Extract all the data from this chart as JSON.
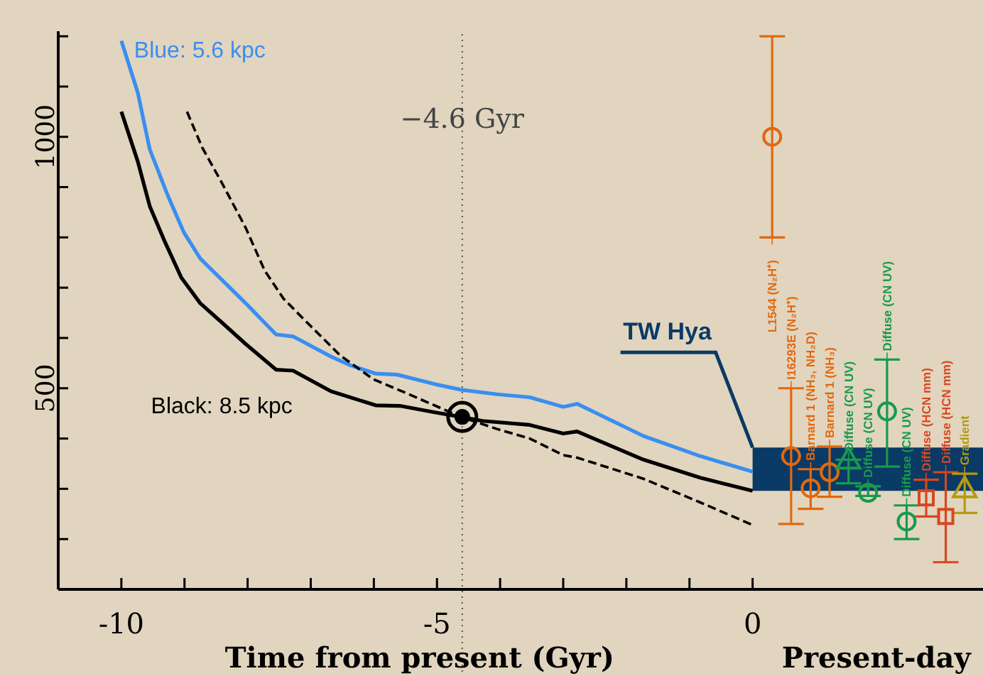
{
  "chart_data": {
    "type": "line",
    "xlabel": "Time from present (Gyr)",
    "annotations": [
      "Present-day"
    ],
    "xlim": [
      -11,
      3.65
    ],
    "xticks": [
      -10,
      {
        "value": -9,
        "label": null
      },
      {
        "value": -8,
        "label": null
      },
      {
        "value": -7,
        "label": null
      },
      {
        "value": -6,
        "label": null
      },
      -5,
      {
        "value": -4,
        "label": null
      },
      {
        "value": -3,
        "label": null
      },
      {
        "value": -2,
        "label": null
      },
      {
        "value": -1,
        "label": null
      },
      0
    ],
    "ylim": [
      100,
      1210
    ],
    "yticks": [
      {
        "value": 100,
        "label": null
      },
      {
        "value": 200,
        "label": null
      },
      {
        "value": 300,
        "label": null
      },
      {
        "value": 400,
        "label": null
      },
      500,
      {
        "value": 600,
        "label": null
      },
      {
        "value": 700,
        "label": null
      },
      {
        "value": 800,
        "label": null
      },
      {
        "value": 900,
        "label": null
      },
      1000,
      {
        "value": 1100,
        "label": null
      },
      {
        "value": 1200,
        "label": null
      }
    ],
    "grid": false,
    "ref_lines": [
      {
        "axis": "x",
        "value": -4.6,
        "label": "−4.6 Gyr",
        "color": "#555555",
        "line_style": "dotted"
      }
    ],
    "bands": [
      {
        "axis": "y",
        "from": 296,
        "to": 382,
        "label": "TW Hya",
        "color": "#0a3a66"
      }
    ],
    "series": [
      {
        "name": "Blue: 5.6 kpc",
        "color": "#3a8ef0",
        "line_style": "solid",
        "marker": "none",
        "x": [
          -10,
          -9.74,
          -9.55,
          -9.27,
          -9.01,
          -8.75,
          -8.41,
          -8.03,
          -7.55,
          -7.28,
          -6.68,
          -6.38,
          -5.97,
          -5.63,
          -5.03,
          -4.62,
          -4.05,
          -3.53,
          -3.0,
          -2.78,
          -1.73,
          -0.83,
          0
        ],
        "values": [
          1191,
          1088,
          975,
          885,
          810,
          758,
          716,
          669,
          607,
          603,
          563,
          546,
          529,
          527,
          508,
          497,
          488,
          482,
          463,
          469,
          405,
          365,
          334
        ]
      },
      {
        "name": "Black: 8.5 kpc",
        "color": "#000000",
        "line_style": "solid",
        "marker": "none",
        "x": [
          -10,
          -9.74,
          -9.55,
          -9.31,
          -9.05,
          -8.75,
          -8.41,
          -8.03,
          -7.55,
          -7.28,
          -6.68,
          -5.97,
          -5.59,
          -5.03,
          -4.62,
          -4.28,
          -3.53,
          -3.0,
          -2.78,
          -1.73,
          -0.83,
          0
        ],
        "values": [
          1050,
          951,
          862,
          791,
          720,
          669,
          631,
          588,
          537,
          535,
          494,
          466,
          465,
          452,
          443,
          435,
          427,
          410,
          414,
          358,
          322,
          296
        ]
      },
      {
        "color": "#000000",
        "line_style": "dashed",
        "marker": "none",
        "x": [
          -8.96,
          -8.72,
          -8.41,
          -8.03,
          -7.73,
          -7.43,
          -7.06,
          -6.53,
          -6.01,
          -5.48,
          -4.62,
          -4.05,
          -3.53,
          -3.0,
          -2.78,
          -1.73,
          -0.83,
          0
        ],
        "values": [
          1050,
          979,
          909,
          819,
          734,
          678,
          631,
          565,
          518,
          490,
          443,
          419,
          400,
          367,
          362,
          320,
          273,
          228
        ]
      },
      {
        "type": "scatter",
        "color": "#000000",
        "marker": "circle",
        "x": [
          -4.6
        ],
        "values": [
          443
        ]
      },
      {
        "name": "L1544 (N₂H⁺)",
        "type": "scatter",
        "color": "#e2680f",
        "marker": "circle",
        "x": [
          0.31
        ],
        "values": [
          1000
        ],
        "errors": [
          [
            800,
            1200
          ]
        ]
      },
      {
        "name": "I16293E (N₂H⁺)",
        "type": "scatter",
        "color": "#e2680f",
        "marker": "circle",
        "x": [
          0.61
        ],
        "values": [
          365
        ],
        "errors": [
          [
            230,
            500
          ]
        ]
      },
      {
        "name": "Barnard 1 (NH₃, NH₂D)",
        "type": "scatter",
        "color": "#e2680f",
        "marker": "circle",
        "x": [
          0.92
        ],
        "values": [
          301
        ],
        "errors": [
          [
            260,
            339
          ]
        ]
      },
      {
        "name": "Barnard 1 (NH₃)",
        "type": "scatter",
        "color": "#e2680f",
        "marker": "circle",
        "x": [
          1.22
        ],
        "values": [
          333
        ],
        "errors": [
          [
            284,
            384
          ]
        ]
      },
      {
        "name": "Diffuse (CN UV)",
        "type": "scatter",
        "color": "#189a4e",
        "marker": "triangle",
        "x": [
          1.52
        ],
        "values": [
          358
        ],
        "errors": [
          [
            311,
            358
          ]
        ]
      },
      {
        "name": "Diffuse (CN UV)",
        "type": "scatter",
        "color": "#189a4e",
        "marker": "circle",
        "x": [
          1.83
        ],
        "values": [
          292
        ],
        "errors": [
          [
            286,
            305
          ]
        ]
      },
      {
        "name": "Diffuse (CN UV)",
        "type": "scatter",
        "color": "#189a4e",
        "marker": "circle",
        "x": [
          2.13
        ],
        "values": [
          454
        ],
        "errors": [
          [
            344,
            557
          ]
        ]
      },
      {
        "name": "Diffuse (CN UV)",
        "type": "scatter",
        "color": "#189a4e",
        "marker": "circle",
        "x": [
          2.44
        ],
        "values": [
          235
        ],
        "errors": [
          [
            200,
            267
          ]
        ]
      },
      {
        "name": "Diffuse (HCN mm)",
        "type": "scatter",
        "color": "#d8461f",
        "marker": "square",
        "x": [
          2.75
        ],
        "values": [
          282
        ],
        "errors": [
          [
            245,
            318
          ]
        ]
      },
      {
        "name": "Diffuse (HCN mm)",
        "type": "scatter",
        "color": "#d8461f",
        "marker": "square",
        "x": [
          3.06
        ],
        "values": [
          245
        ],
        "errors": [
          [
            154,
            333
          ]
        ]
      },
      {
        "name": "Gradient",
        "type": "scatter",
        "color": "#b59a10",
        "marker": "triangle",
        "x": [
          3.36
        ],
        "values": [
          301
        ],
        "errors": [
          [
            252,
            330
          ]
        ]
      }
    ]
  }
}
